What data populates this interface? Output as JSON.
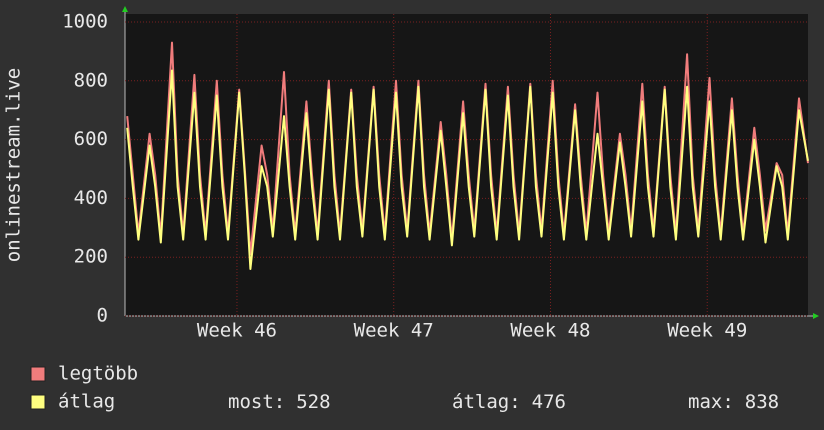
{
  "chart_data": {
    "type": "line",
    "y_label": "onlinestream.live",
    "x": [
      0.1,
      0.35,
      0.6,
      1.1,
      1.35,
      1.6,
      2.1,
      2.35,
      2.6,
      3.1,
      3.35,
      3.6,
      4.1,
      4.35,
      4.6,
      5.1,
      5.35,
      5.6,
      6.1,
      6.35,
      6.6,
      7.1,
      7.35,
      7.6,
      8.1,
      8.35,
      8.6,
      9.1,
      9.35,
      9.6,
      10.1,
      10.35,
      10.6,
      11.1,
      11.35,
      11.6,
      12.1,
      12.35,
      12.6,
      13.1,
      13.35,
      13.6,
      14.1,
      14.35,
      14.6,
      15.1,
      15.35,
      15.6,
      16.1,
      16.35,
      16.6,
      17.1,
      17.35,
      17.6,
      18.1,
      18.35,
      18.6,
      19.1,
      19.35,
      19.6,
      20.1,
      20.35,
      20.6,
      21.1,
      21.35,
      21.6,
      22.1,
      22.35,
      22.6,
      23.1,
      23.35,
      23.6,
      24.1,
      24.35,
      24.6,
      25.1,
      25.35,
      25.6,
      26.1,
      26.35,
      26.6,
      27.1,
      27.35,
      27.6,
      28.1,
      28.35,
      28.6,
      29.1,
      29.35,
      29.6,
      30.1,
      30.5
    ],
    "series": [
      {
        "name": "legtöbb",
        "color": "#f07c7c",
        "values": [
          680,
          480,
          280,
          620,
          480,
          270,
          930,
          480,
          280,
          820,
          480,
          280,
          800,
          480,
          280,
          770,
          500,
          210,
          580,
          480,
          290,
          830,
          480,
          280,
          730,
          480,
          280,
          800,
          480,
          280,
          770,
          480,
          290,
          780,
          480,
          280,
          800,
          480,
          290,
          800,
          480,
          280,
          660,
          480,
          260,
          730,
          480,
          290,
          790,
          480,
          280,
          780,
          480,
          280,
          790,
          480,
          290,
          800,
          480,
          280,
          720,
          480,
          280,
          760,
          480,
          280,
          620,
          480,
          290,
          790,
          480,
          290,
          780,
          480,
          280,
          890,
          480,
          290,
          810,
          480,
          280,
          740,
          480,
          280,
          640,
          480,
          290,
          520,
          480,
          280,
          740,
          520
        ]
      },
      {
        "name": "átlag",
        "color": "#ffff80",
        "values": [
          640,
          440,
          260,
          580,
          440,
          250,
          835,
          440,
          260,
          760,
          440,
          260,
          750,
          440,
          260,
          760,
          480,
          160,
          510,
          440,
          270,
          680,
          440,
          260,
          690,
          440,
          260,
          770,
          440,
          260,
          760,
          440,
          270,
          770,
          440,
          260,
          760,
          440,
          270,
          780,
          440,
          260,
          630,
          440,
          240,
          690,
          440,
          270,
          770,
          440,
          260,
          750,
          440,
          260,
          780,
          440,
          270,
          760,
          440,
          260,
          700,
          440,
          260,
          620,
          440,
          260,
          590,
          440,
          270,
          730,
          440,
          270,
          770,
          440,
          260,
          780,
          440,
          270,
          730,
          440,
          260,
          700,
          440,
          260,
          600,
          440,
          250,
          510,
          440,
          260,
          700,
          528
        ]
      }
    ],
    "xlim": [
      0,
      30.5
    ],
    "xticks": [
      {
        "value": 5,
        "label": "Week 46"
      },
      {
        "value": 12,
        "label": "Week 47"
      },
      {
        "value": 19,
        "label": "Week 48"
      },
      {
        "value": 26,
        "label": "Week 49"
      }
    ],
    "ylim": [
      0,
      1000
    ],
    "yticks": [
      0,
      200,
      400,
      600,
      800,
      1000
    ],
    "grid": true,
    "stats": [
      {
        "label": "most:",
        "value": 528
      },
      {
        "label": "átlag:",
        "value": 476
      },
      {
        "label": "max:",
        "value": 838
      }
    ]
  }
}
